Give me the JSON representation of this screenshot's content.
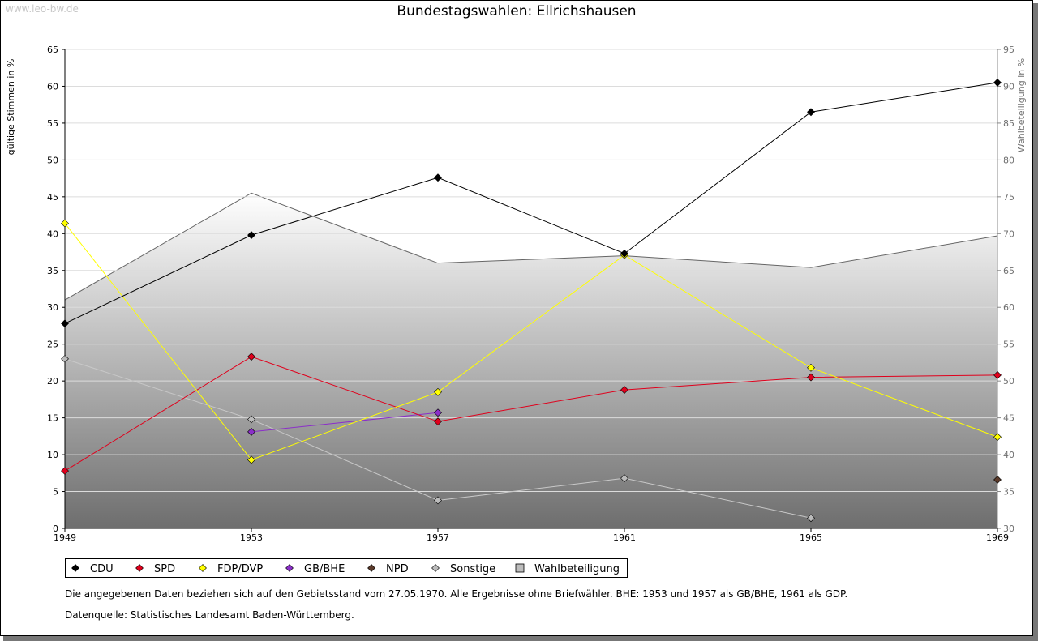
{
  "watermark": "www.leo-bw.de",
  "chart_data": {
    "type": "line",
    "title": "Bundestagswahlen: Ellrichshausen",
    "ylabel": "gültige Stimmen in %",
    "ylabel_right": "Wahlbeteiligung in %",
    "ylim": [
      0,
      65
    ],
    "ylim_right": [
      30,
      95
    ],
    "yticks": [
      "0",
      "5",
      "10",
      "15",
      "20",
      "25",
      "30",
      "35",
      "40",
      "45",
      "50",
      "55",
      "60",
      "65"
    ],
    "yticks_right": [
      "30",
      "35",
      "40",
      "45",
      "50",
      "55",
      "60",
      "65",
      "70",
      "75",
      "80",
      "85",
      "90",
      "95"
    ],
    "categories": [
      "1949",
      "1953",
      "1957",
      "1961",
      "1965",
      "1969"
    ],
    "series": [
      {
        "name": "CDU",
        "color": "#000000",
        "values": [
          27.8,
          39.8,
          47.6,
          37.3,
          56.5,
          60.5
        ]
      },
      {
        "name": "SPD",
        "color": "#e0001c",
        "values": [
          7.8,
          23.3,
          14.5,
          18.8,
          20.5,
          20.8
        ]
      },
      {
        "name": "FDP/DVP",
        "color": "#ffff00",
        "values": [
          41.4,
          9.3,
          18.5,
          37.1,
          21.8,
          12.4
        ]
      },
      {
        "name": "GB/BHE",
        "color": "#8b2fc9",
        "values": [
          null,
          13.1,
          15.7,
          null,
          null,
          null
        ]
      },
      {
        "name": "NPD",
        "color": "#5a3a2a",
        "values": [
          null,
          null,
          null,
          null,
          null,
          6.6
        ]
      },
      {
        "name": "Sonstige",
        "color": "#bbbbbb",
        "values": [
          23.0,
          14.8,
          3.8,
          6.8,
          1.4,
          null
        ]
      }
    ],
    "turnout": {
      "name": "Wahlbeteiligung",
      "axis": "right",
      "values": [
        61.0,
        75.5,
        66.0,
        67.0,
        65.4,
        69.7
      ]
    }
  },
  "notes": {
    "line1": "Die angegebenen Daten beziehen sich auf den Gebietsstand vom 27.05.1970. Alle Ergebnisse ohne Briefwähler. BHE: 1953 und 1957 als GB/BHE, 1961 als GDP.",
    "line2": "Datenquelle: Statistisches Landesamt Baden-Württemberg."
  }
}
